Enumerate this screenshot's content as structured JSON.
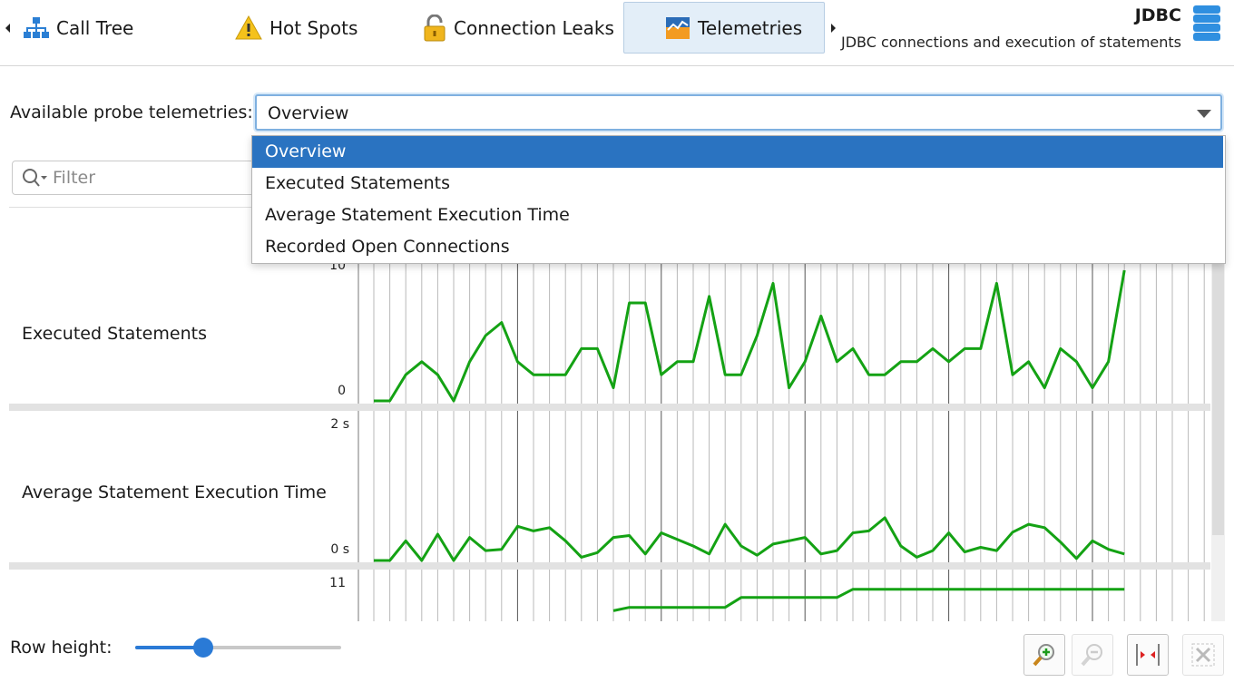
{
  "tabs": [
    {
      "label": "Call Tree",
      "icon": "call-tree-icon"
    },
    {
      "label": "Hot Spots",
      "icon": "warning-icon"
    },
    {
      "label": "Connection Leaks",
      "icon": "open-lock-icon"
    },
    {
      "label": "Telemetries",
      "icon": "telemetry-chart-icon",
      "active": true
    }
  ],
  "header": {
    "title": "JDBC",
    "subtitle": "JDBC connections and execution of statements",
    "icon": "database-stack-icon"
  },
  "probe": {
    "label": "Available probe telemetries:",
    "selected": "Overview",
    "options": [
      "Overview",
      "Executed Statements",
      "Average Statement Execution Time",
      "Recorded Open Connections"
    ]
  },
  "filter": {
    "placeholder": "Filter"
  },
  "telemetries": [
    {
      "label": "Executed Statements",
      "y_max_label": "10",
      "y_min_label": "0",
      "y_range": [
        0,
        10
      ],
      "values": [
        0,
        0,
        2,
        3,
        2,
        0,
        3,
        5,
        6,
        3,
        2,
        2,
        2,
        4,
        4,
        1,
        7.5,
        7.5,
        2,
        3,
        3,
        8,
        2,
        2,
        5,
        9,
        1,
        3,
        6.5,
        3,
        4,
        2,
        2,
        3,
        3,
        4,
        3,
        4,
        4,
        9,
        2,
        3,
        1,
        4,
        3,
        1,
        3,
        10
      ]
    },
    {
      "label": "Average Statement Execution Time",
      "y_max_label": "2 s",
      "y_min_label": "0 s",
      "y_range": [
        0,
        2
      ],
      "values": [
        0,
        0,
        0.3,
        0,
        0.4,
        0,
        0.35,
        0.15,
        0.17,
        0.52,
        0.45,
        0.5,
        0.3,
        0.05,
        0.12,
        0.35,
        0.38,
        0.1,
        0.42,
        0.32,
        0.22,
        0.1,
        0.55,
        0.22,
        0.08,
        0.25,
        0.3,
        0.35,
        0.1,
        0.15,
        0.42,
        0.45,
        0.65,
        0.22,
        0.05,
        0.15,
        0.42,
        0.13,
        0.2,
        0.15,
        0.43,
        0.55,
        0.5,
        0.28,
        0.03,
        0.3,
        0.17,
        0.1
      ]
    },
    {
      "label": "Recorded Open Connections",
      "y_max_label": "11",
      "y_range": [
        0,
        11
      ],
      "values": [
        null,
        null,
        null,
        null,
        null,
        null,
        null,
        null,
        null,
        null,
        null,
        null,
        null,
        null,
        null,
        9,
        9.2,
        9.2,
        9.2,
        9.2,
        9.2,
        9.2,
        9.2,
        9.8,
        9.8,
        9.8,
        9.8,
        9.8,
        9.8,
        9.8,
        10.3,
        10.3,
        10.3,
        10.3,
        10.3,
        10.3,
        10.3,
        10.3,
        10.3,
        10.3,
        10.3,
        10.3,
        10.3,
        10.3,
        10.3,
        10.3,
        10.3,
        10.3
      ]
    }
  ],
  "footer": {
    "row_height_label": "Row height:",
    "row_height_value": 0.33,
    "buttons": [
      {
        "name": "zoom-in-button",
        "icon": "zoom-in-icon",
        "enabled": true
      },
      {
        "name": "zoom-out-button",
        "icon": "zoom-out-icon",
        "enabled": false
      },
      {
        "name": "fit-width-button",
        "icon": "fit-width-icon",
        "enabled": true
      },
      {
        "name": "reset-zoom-button",
        "icon": "reset-zoom-icon",
        "enabled": false
      }
    ]
  },
  "colors": {
    "accent": "#2a73c1",
    "series": "#14a214",
    "grid_minor": "#b9b9b9",
    "grid_major": "#555555"
  }
}
